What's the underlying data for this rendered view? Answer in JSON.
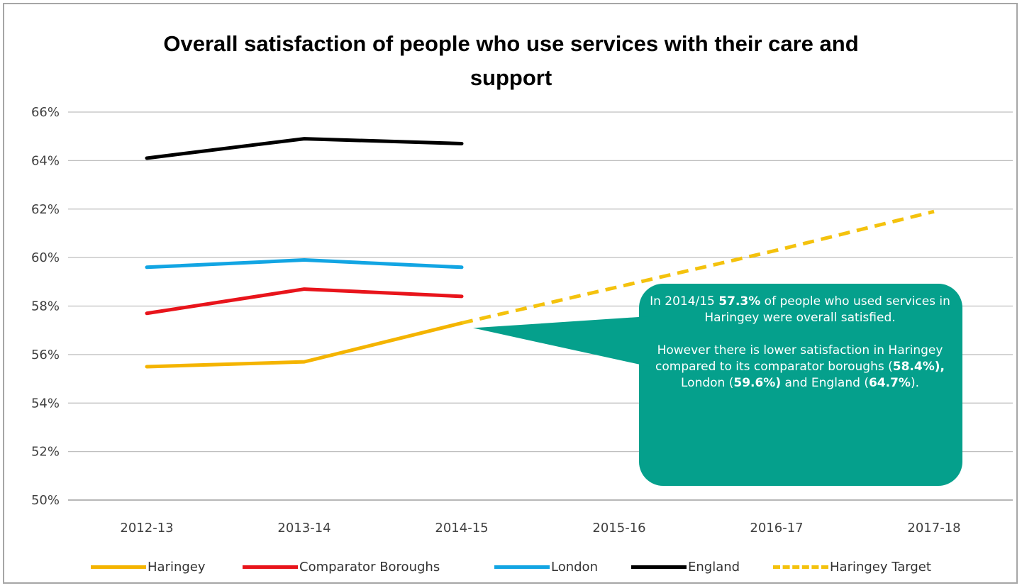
{
  "chart_data": {
    "type": "line",
    "title": "Overall satisfaction of people who use services with their care and support",
    "title_lines": [
      "Overall satisfaction of people who use services with their care and",
      "support"
    ],
    "categories": [
      "2012-13",
      "2013-14",
      "2014-15",
      "2015-16",
      "2016-17",
      "2017-18"
    ],
    "y_ticks": [
      "50%",
      "52%",
      "54%",
      "56%",
      "58%",
      "60%",
      "62%",
      "64%",
      "66%"
    ],
    "ylim": [
      50,
      66
    ],
    "grid": true,
    "legend_position": "bottom",
    "series": [
      {
        "name": "Haringey",
        "values": [
          55.5,
          55.7,
          57.3,
          null,
          null,
          null
        ],
        "color": "#f4b400",
        "dashed": false
      },
      {
        "name": "Comparator Boroughs",
        "values": [
          57.7,
          58.7,
          58.4,
          null,
          null,
          null
        ],
        "color": "#e8141b",
        "dashed": false
      },
      {
        "name": "London",
        "values": [
          59.6,
          59.9,
          59.6,
          null,
          null,
          null
        ],
        "color": "#12a5e3",
        "dashed": false
      },
      {
        "name": "England",
        "values": [
          64.1,
          64.9,
          64.7,
          null,
          null,
          null
        ],
        "color": "#000000",
        "dashed": false
      },
      {
        "name": "Haringey Target",
        "values": [
          null,
          null,
          57.3,
          58.8,
          60.3,
          61.9
        ],
        "color": "#f4c20d",
        "dashed": true
      }
    ],
    "annotation": {
      "color": "#05a08c",
      "pointer_category": "2014-15",
      "pointer_value": 57.3,
      "para1": {
        "t1": "In 2014/15 ",
        "b1": "57.3%",
        "t2": " of people who used services in Haringey were overall satisfied."
      },
      "para2": {
        "t1": "However there is lower satisfaction in Haringey compared to its comparator boroughs (",
        "b1": "58.4%),",
        "t2": " London (",
        "b2": "59.6%)",
        "t3": " and England (",
        "b3": "64.7%",
        "t4": ")."
      }
    }
  }
}
